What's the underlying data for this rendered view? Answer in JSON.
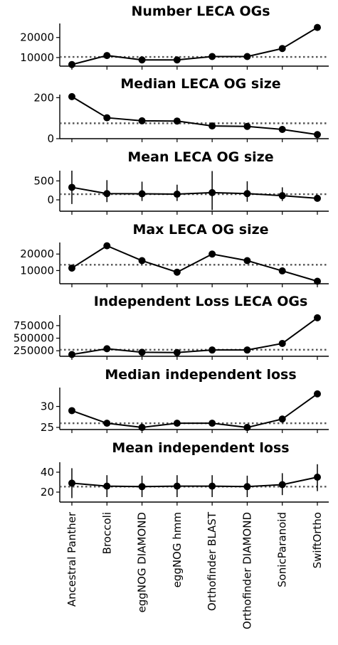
{
  "chart_data": {
    "type": "line",
    "categories": [
      "Ancestral Panther",
      "Broccoli",
      "eggNOG DIAMOND",
      "eggNOG hmm",
      "Orthofinder BLAST",
      "Orthofinder DIAMOND",
      "SonicParanoid",
      "SwiftOrtho"
    ],
    "panels": [
      {
        "title": "Number LECA OGs",
        "values": [
          6500,
          11000,
          8800,
          8800,
          10500,
          10500,
          14500,
          25000
        ],
        "errors": null,
        "mean_line": 10300,
        "ylim": [
          5700,
          27000
        ],
        "yticks": [
          10000,
          20000
        ],
        "ytick_labels": [
          "10000",
          "20000"
        ]
      },
      {
        "title": "Median LECA OG size",
        "values": [
          205,
          102,
          87,
          86,
          62,
          60,
          45,
          20
        ],
        "errors": null,
        "mean_line": 75,
        "ylim": [
          0,
          215
        ],
        "yticks": [
          0,
          200
        ],
        "ytick_labels": [
          "0",
          "200"
        ]
      },
      {
        "title": "Mean LECA OG size",
        "values": [
          330,
          165,
          160,
          150,
          190,
          165,
          110,
          40
        ],
        "errors": [
          [
            -110,
            770
          ],
          [
            -60,
            520
          ],
          [
            -30,
            480
          ],
          [
            -30,
            400
          ],
          [
            -270,
            760
          ],
          [
            -50,
            490
          ],
          [
            -30,
            330
          ],
          [
            -10,
            130
          ]
        ],
        "mean_line": 150,
        "ylim": [
          -300,
          770
        ],
        "yticks": [
          0,
          500
        ],
        "ytick_labels": [
          "0",
          "500"
        ]
      },
      {
        "title": "Max LECA OG size",
        "values": [
          11500,
          25000,
          16000,
          9000,
          20000,
          16000,
          9800,
          3500
        ],
        "errors": null,
        "mean_line": 13500,
        "ylim": [
          2000,
          27000
        ],
        "yticks": [
          10000,
          20000
        ],
        "ytick_labels": [
          "10000",
          "20000"
        ]
      },
      {
        "title": "Independent Loss LECA OGs",
        "values": [
          175000,
          290000,
          220000,
          215000,
          265000,
          265000,
          395000,
          905000
        ],
        "errors": null,
        "mean_line": 270000,
        "ylim": [
          140000,
          960000
        ],
        "yticks": [
          250000,
          500000,
          750000
        ],
        "ytick_labels": [
          "250000",
          "500000",
          "750000"
        ]
      },
      {
        "title": "Median independent loss",
        "values": [
          29,
          26,
          25,
          26,
          26,
          25,
          27,
          33
        ],
        "errors": null,
        "mean_line": 26,
        "ylim": [
          24.5,
          34.5
        ],
        "yticks": [
          25,
          30
        ],
        "ytick_labels": [
          "25",
          "30"
        ]
      },
      {
        "title": "Mean independent loss",
        "values": [
          29,
          26,
          25.5,
          26,
          26,
          25.5,
          27.5,
          35
        ],
        "errors": [
          [
            14,
            44
          ],
          [
            15,
            37
          ],
          [
            15,
            36.5
          ],
          [
            15,
            37
          ],
          [
            15,
            37
          ],
          [
            15,
            36.5
          ],
          [
            17,
            39
          ],
          [
            21,
            48
          ]
        ],
        "mean_line": 25.5,
        "ylim": [
          10,
          50
        ],
        "yticks": [
          20,
          40
        ],
        "ytick_labels": [
          "20",
          "40"
        ]
      }
    ],
    "grid": false,
    "legend": "none"
  }
}
